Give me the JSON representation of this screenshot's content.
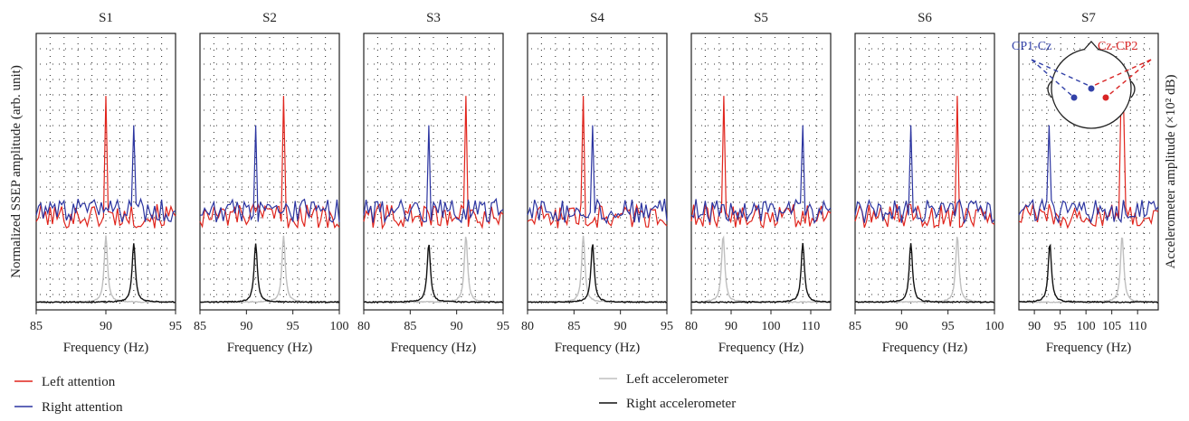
{
  "figure": {
    "ylabel_left": "Normalized SSEP amplitude (arb. unit)",
    "ylabel_right": "Accelerometer amplitude (×10² dB)",
    "colors": {
      "left_attention": "#e0241c",
      "right_attention": "#2b34a0",
      "left_accelerometer": "#bfbfbf",
      "right_accelerometer": "#111111",
      "cp1_electrode": "#3342a8",
      "cp2_electrode": "#d92525"
    },
    "legend": [
      {
        "label": "Left attention",
        "color": "#e0241c"
      },
      {
        "label": "Right attention",
        "color": "#2b34a0"
      },
      {
        "label": "Left accelerometer",
        "color": "#bfbfbf"
      },
      {
        "label": "Right accelerometer",
        "color": "#111111"
      }
    ],
    "inset": {
      "left_label": "CP1-Cz",
      "right_label": "Cz-CP2"
    }
  },
  "chart_data": [
    {
      "type": "line",
      "title": "S1",
      "xlabel": "Frequency (Hz)",
      "xlim": [
        85,
        95
      ],
      "xticks": [
        85,
        90,
        95
      ],
      "xtick_labels": [
        "85",
        "90",
        "95"
      ],
      "peaks": {
        "left_attention": {
          "x": 90,
          "h": 0.78
        },
        "right_attention": {
          "x": 92,
          "h": 0.67
        },
        "left_accelerometer": {
          "x": 90,
          "h": 0.25
        },
        "right_accelerometer": {
          "x": 92,
          "h": 0.22
        }
      },
      "grid": true
    },
    {
      "type": "line",
      "title": "S2",
      "xlabel": "Frequency (Hz)",
      "xlim": [
        85,
        100
      ],
      "xticks": [
        85,
        90,
        95,
        100
      ],
      "xtick_labels": [
        "85",
        "90",
        "95",
        "100"
      ],
      "peaks": {
        "left_attention": {
          "x": 94,
          "h": 0.78
        },
        "right_attention": {
          "x": 91,
          "h": 0.67
        },
        "left_accelerometer": {
          "x": 94,
          "h": 0.25
        },
        "right_accelerometer": {
          "x": 91,
          "h": 0.22
        }
      },
      "grid": true
    },
    {
      "type": "line",
      "title": "S3",
      "xlabel": "Frequency (Hz)",
      "xlim": [
        80,
        95
      ],
      "xticks": [
        80,
        85,
        90,
        95
      ],
      "xtick_labels": [
        "80",
        "85",
        "90",
        "95"
      ],
      "peaks": {
        "left_attention": {
          "x": 91,
          "h": 0.78
        },
        "right_attention": {
          "x": 87,
          "h": 0.67
        },
        "left_accelerometer": {
          "x": 91,
          "h": 0.25
        },
        "right_accelerometer": {
          "x": 87,
          "h": 0.22
        }
      },
      "grid": true
    },
    {
      "type": "line",
      "title": "S4",
      "xlabel": "Frequency (Hz)",
      "xlim": [
        80,
        95
      ],
      "xticks": [
        80,
        85,
        90,
        95
      ],
      "xtick_labels": [
        "80",
        "85",
        "90",
        "95"
      ],
      "peaks": {
        "left_attention": {
          "x": 86,
          "h": 0.78
        },
        "right_attention": {
          "x": 87,
          "h": 0.67
        },
        "left_accelerometer": {
          "x": 86,
          "h": 0.25
        },
        "right_accelerometer": {
          "x": 87,
          "h": 0.22
        }
      },
      "grid": true
    },
    {
      "type": "line",
      "title": "S5",
      "xlabel": "Frequency (Hz)",
      "xlim": [
        80,
        115
      ],
      "xticks": [
        80,
        90,
        100,
        110
      ],
      "xtick_labels": [
        "80",
        "90",
        "100",
        "110"
      ],
      "peaks": {
        "left_attention": {
          "x": 88,
          "h": 0.78
        },
        "right_attention": {
          "x": 108,
          "h": 0.67
        },
        "left_accelerometer": {
          "x": 88,
          "h": 0.25
        },
        "right_accelerometer": {
          "x": 108,
          "h": 0.22
        }
      },
      "grid": true
    },
    {
      "type": "line",
      "title": "S6",
      "xlabel": "Frequency (Hz)",
      "xlim": [
        85,
        100
      ],
      "xticks": [
        85,
        90,
        95,
        100
      ],
      "xtick_labels": [
        "85",
        "90",
        "95",
        "100"
      ],
      "peaks": {
        "left_attention": {
          "x": 96,
          "h": 0.78
        },
        "right_attention": {
          "x": 91,
          "h": 0.67
        },
        "left_accelerometer": {
          "x": 96,
          "h": 0.25
        },
        "right_accelerometer": {
          "x": 91,
          "h": 0.22
        }
      },
      "grid": true
    },
    {
      "type": "line",
      "title": "S7",
      "xlabel": "Frequency (Hz)",
      "xlim": [
        87,
        114
      ],
      "xticks": [
        90,
        95,
        100,
        105,
        110
      ],
      "xtick_labels": [
        "90",
        "95",
        "100",
        "105",
        "110"
      ],
      "peaks": {
        "left_attention": {
          "x": 107,
          "h": 0.78
        },
        "right_attention": {
          "x": 93,
          "h": 0.67
        },
        "left_accelerometer": {
          "x": 107,
          "h": 0.25
        },
        "right_accelerometer": {
          "x": 93,
          "h": 0.22
        }
      },
      "grid": true
    }
  ]
}
